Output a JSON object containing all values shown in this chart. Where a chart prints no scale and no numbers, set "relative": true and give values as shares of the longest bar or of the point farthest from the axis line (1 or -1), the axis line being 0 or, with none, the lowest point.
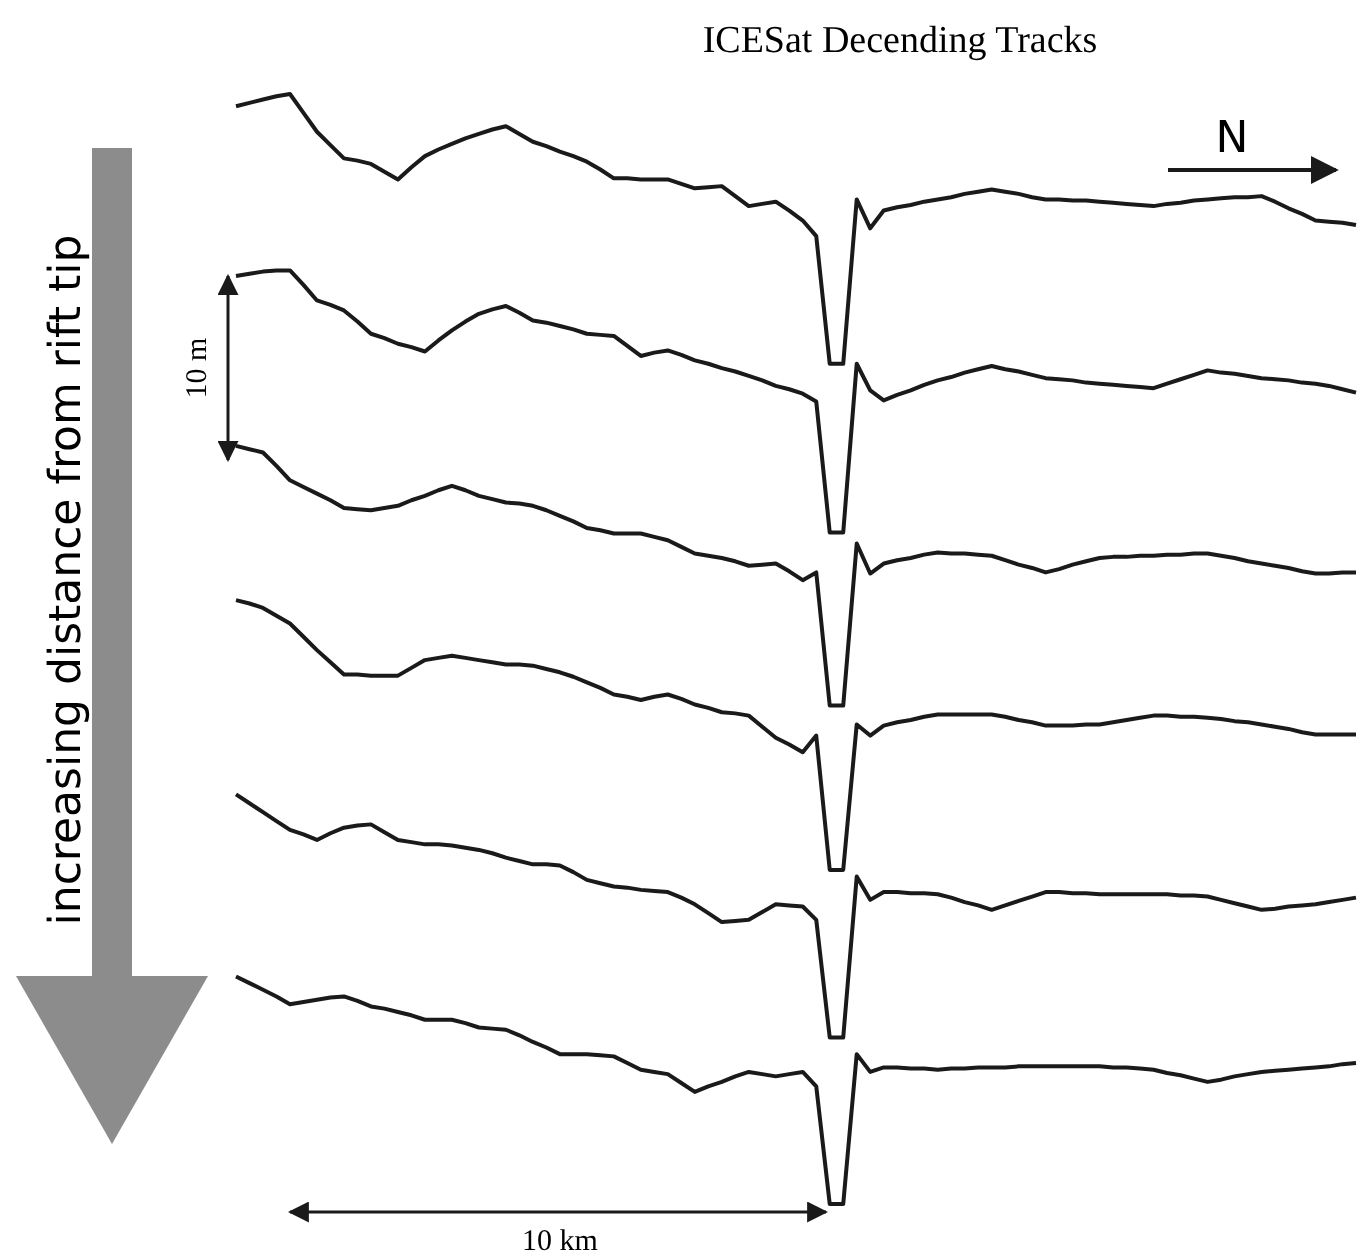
{
  "chart_data": {
    "type": "line",
    "title": "ICESat Decending Tracks",
    "relative": true,
    "tick_labels": false,
    "categories": [
      null,
      null,
      null,
      null,
      null,
      null,
      null,
      null,
      null,
      null,
      null,
      null,
      null,
      null,
      null,
      null,
      null,
      null,
      null,
      null,
      null,
      null,
      null,
      null,
      null,
      null,
      null,
      null,
      null,
      null,
      null,
      null,
      null,
      null,
      null,
      null,
      null,
      null,
      null,
      null,
      null,
      null,
      null,
      null,
      null,
      null,
      null,
      null,
      null,
      null,
      null,
      null,
      null,
      null,
      null,
      null,
      null,
      null,
      null,
      null,
      null,
      null,
      null,
      null,
      null,
      null,
      null,
      null,
      null,
      null,
      null,
      null,
      null,
      null,
      null,
      null,
      null,
      null,
      null,
      null,
      null,
      null,
      null,
      null
    ],
    "series": [
      {
        "color": "#1a1a1a",
        "values": [
          0.989,
          0.992,
          0.995,
          0.998,
          1,
          0.983,
          0.966,
          0.954,
          0.942,
          0.94,
          0.937,
          0.93,
          0.923,
          0.934,
          0.944,
          0.95,
          0.955,
          0.96,
          0.964,
          0.968,
          0.971,
          0.964,
          0.957,
          0.953,
          0.948,
          0.944,
          0.939,
          0.932,
          0.924,
          0.924,
          0.923,
          0.923,
          0.923,
          0.919,
          0.915,
          0.916,
          0.917,
          0.908,
          0.899,
          0.901,
          0.903,
          0.895,
          0.886,
          0.872,
          0.757,
          0.757,
          0.905,
          0.879,
          0.895,
          0.898,
          0.9,
          0.903,
          0.905,
          0.907,
          0.91,
          0.912,
          0.914,
          0.912,
          0.91,
          0.907,
          0.905,
          0.905,
          0.904,
          0.904,
          0.903,
          0.902,
          0.901,
          0.9,
          0.899,
          0.901,
          0.902,
          0.904,
          0.905,
          0.906,
          0.907,
          0.907,
          0.908,
          0.903,
          0.897,
          0.892,
          0.886,
          0.885,
          0.884,
          0.882
        ]
      },
      {
        "color": "#1a1a1a",
        "values": [
          0.836,
          0.838,
          0.84,
          0.841,
          0.841,
          0.828,
          0.814,
          0.81,
          0.805,
          0.795,
          0.784,
          0.78,
          0.775,
          0.772,
          0.768,
          0.778,
          0.787,
          0.795,
          0.802,
          0.806,
          0.809,
          0.803,
          0.796,
          0.794,
          0.791,
          0.788,
          0.784,
          0.783,
          0.782,
          0.773,
          0.764,
          0.767,
          0.769,
          0.765,
          0.76,
          0.757,
          0.753,
          0.75,
          0.746,
          0.742,
          0.737,
          0.734,
          0.73,
          0.723,
          0.605,
          0.605,
          0.757,
          0.733,
          0.724,
          0.729,
          0.733,
          0.738,
          0.742,
          0.745,
          0.749,
          0.752,
          0.755,
          0.752,
          0.75,
          0.747,
          0.744,
          0.743,
          0.742,
          0.74,
          0.739,
          0.738,
          0.737,
          0.736,
          0.735,
          0.739,
          0.743,
          0.747,
          0.751,
          0.749,
          0.748,
          0.746,
          0.744,
          0.743,
          0.742,
          0.74,
          0.739,
          0.737,
          0.734,
          0.731
        ]
      },
      {
        "color": "#1a1a1a",
        "values": [
          0.683,
          0.68,
          0.677,
          0.665,
          0.652,
          0.646,
          0.64,
          0.634,
          0.627,
          0.626,
          0.625,
          0.627,
          0.629,
          0.634,
          0.638,
          0.643,
          0.647,
          0.643,
          0.638,
          0.635,
          0.632,
          0.631,
          0.629,
          0.625,
          0.62,
          0.615,
          0.609,
          0.607,
          0.604,
          0.604,
          0.604,
          0.601,
          0.598,
          0.592,
          0.586,
          0.584,
          0.582,
          0.579,
          0.575,
          0.576,
          0.577,
          0.57,
          0.562,
          0.569,
          0.449,
          0.449,
          0.595,
          0.568,
          0.577,
          0.58,
          0.582,
          0.585,
          0.587,
          0.586,
          0.586,
          0.585,
          0.584,
          0.58,
          0.576,
          0.573,
          0.569,
          0.572,
          0.576,
          0.579,
          0.582,
          0.583,
          0.583,
          0.584,
          0.584,
          0.585,
          0.585,
          0.586,
          0.586,
          0.584,
          0.582,
          0.579,
          0.577,
          0.575,
          0.573,
          0.57,
          0.568,
          0.568,
          0.569,
          0.569
        ]
      },
      {
        "color": "#1a1a1a",
        "values": [
          0.544,
          0.541,
          0.537,
          0.53,
          0.523,
          0.511,
          0.499,
          0.488,
          0.477,
          0.477,
          0.476,
          0.476,
          0.476,
          0.483,
          0.49,
          0.492,
          0.494,
          0.492,
          0.49,
          0.488,
          0.486,
          0.486,
          0.485,
          0.482,
          0.479,
          0.475,
          0.47,
          0.465,
          0.459,
          0.457,
          0.454,
          0.457,
          0.459,
          0.455,
          0.45,
          0.447,
          0.443,
          0.442,
          0.44,
          0.43,
          0.42,
          0.414,
          0.407,
          0.422,
          0.301,
          0.301,
          0.432,
          0.422,
          0.431,
          0.434,
          0.436,
          0.439,
          0.441,
          0.441,
          0.441,
          0.441,
          0.441,
          0.439,
          0.436,
          0.434,
          0.431,
          0.431,
          0.431,
          0.432,
          0.432,
          0.434,
          0.436,
          0.438,
          0.44,
          0.44,
          0.439,
          0.439,
          0.438,
          0.437,
          0.435,
          0.434,
          0.432,
          0.43,
          0.428,
          0.425,
          0.423,
          0.423,
          0.423,
          0.423
        ]
      },
      {
        "color": "#1a1a1a",
        "values": [
          0.369,
          0.361,
          0.353,
          0.345,
          0.337,
          0.333,
          0.328,
          0.334,
          0.339,
          0.341,
          0.342,
          0.335,
          0.328,
          0.326,
          0.324,
          0.324,
          0.323,
          0.321,
          0.319,
          0.316,
          0.312,
          0.309,
          0.306,
          0.306,
          0.305,
          0.299,
          0.292,
          0.289,
          0.286,
          0.285,
          0.283,
          0.282,
          0.281,
          0.276,
          0.27,
          0.262,
          0.254,
          0.255,
          0.256,
          0.263,
          0.27,
          0.269,
          0.268,
          0.256,
          0.15,
          0.15,
          0.295,
          0.274,
          0.281,
          0.281,
          0.28,
          0.28,
          0.279,
          0.276,
          0.272,
          0.269,
          0.265,
          0.269,
          0.273,
          0.277,
          0.281,
          0.281,
          0.28,
          0.28,
          0.279,
          0.279,
          0.279,
          0.279,
          0.279,
          0.279,
          0.278,
          0.278,
          0.277,
          0.274,
          0.271,
          0.268,
          0.265,
          0.266,
          0.268,
          0.269,
          0.27,
          0.272,
          0.274,
          0.276
        ]
      },
      {
        "color": "#1a1a1a",
        "values": [
          0.205,
          0.199,
          0.193,
          0.187,
          0.18,
          0.182,
          0.184,
          0.186,
          0.187,
          0.183,
          0.178,
          0.176,
          0.173,
          0.17,
          0.166,
          0.166,
          0.166,
          0.163,
          0.159,
          0.158,
          0.157,
          0.152,
          0.146,
          0.141,
          0.135,
          0.135,
          0.135,
          0.134,
          0.133,
          0.127,
          0.121,
          0.119,
          0.117,
          0.109,
          0.101,
          0.106,
          0.11,
          0.115,
          0.119,
          0.117,
          0.115,
          0.117,
          0.119,
          0.106,
          0,
          0,
          0.135,
          0.119,
          0.123,
          0.123,
          0.122,
          0.122,
          0.121,
          0.122,
          0.122,
          0.123,
          0.123,
          0.123,
          0.124,
          0.124,
          0.124,
          0.124,
          0.124,
          0.124,
          0.124,
          0.123,
          0.123,
          0.122,
          0.121,
          0.118,
          0.116,
          0.113,
          0.11,
          0.112,
          0.115,
          0.117,
          0.119,
          0.12,
          0.121,
          0.122,
          0.123,
          0.124,
          0.126,
          0.127
        ]
      }
    ],
    "annotations": [
      "N",
      "10 m",
      "10 km",
      "increasing distance from rift tip"
    ]
  }
}
